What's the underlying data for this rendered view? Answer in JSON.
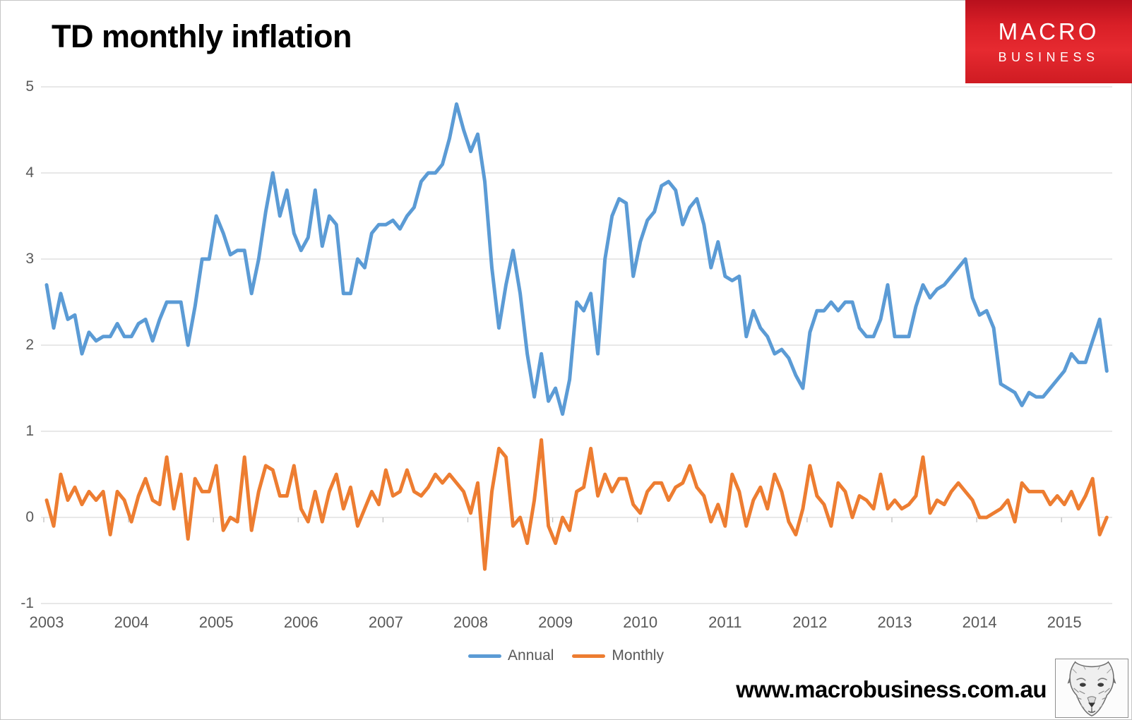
{
  "page": {
    "title": "TD monthly inflation",
    "website": "www.macrobusiness.com.au"
  },
  "logo": {
    "line1": "MACRO",
    "line2": "BUSINESS",
    "background_color": "#d91f27",
    "text_color": "#ffffff"
  },
  "colors": {
    "annual_line": "#5B9BD5",
    "monthly_line": "#ED7D31",
    "gridline": "#D9D9D9",
    "tick": "#BFBFBF",
    "axis_text": "#595959",
    "title_text": "#000000"
  },
  "chart_data": {
    "type": "line",
    "title": "TD monthly inflation",
    "frequency": "monthly",
    "x_start": "2003-01",
    "x_end": "2015-07",
    "x_tick_labels": [
      "2003",
      "2004",
      "2005",
      "2006",
      "2007",
      "2008",
      "2009",
      "2010",
      "2011",
      "2012",
      "2013",
      "2014",
      "2015"
    ],
    "y_ticks": [
      5,
      4,
      3,
      2,
      1,
      0,
      -1
    ],
    "ylim": [
      -1,
      5
    ],
    "grid": true,
    "legend_position": "bottom",
    "series": [
      {
        "name": "Annual",
        "color": "#5B9BD5",
        "values": [
          2.7,
          2.2,
          2.6,
          2.3,
          2.35,
          1.9,
          2.15,
          2.05,
          2.1,
          2.1,
          2.25,
          2.1,
          2.1,
          2.25,
          2.3,
          2.05,
          2.3,
          2.5,
          2.5,
          2.5,
          2.0,
          2.45,
          3.0,
          3.0,
          3.5,
          3.3,
          3.05,
          3.1,
          3.1,
          2.6,
          3.0,
          3.55,
          4.0,
          3.5,
          3.8,
          3.3,
          3.1,
          3.25,
          3.8,
          3.15,
          3.5,
          3.4,
          2.6,
          2.6,
          3.0,
          2.9,
          3.3,
          3.4,
          3.4,
          3.45,
          3.35,
          3.5,
          3.6,
          3.9,
          4.0,
          4.0,
          4.1,
          4.4,
          4.8,
          4.5,
          4.25,
          4.45,
          3.9,
          2.9,
          2.2,
          2.7,
          3.1,
          2.6,
          1.9,
          1.4,
          1.9,
          1.35,
          1.5,
          1.2,
          1.6,
          2.5,
          2.4,
          2.6,
          1.9,
          3.0,
          3.5,
          3.7,
          3.65,
          2.8,
          3.2,
          3.45,
          3.55,
          3.85,
          3.9,
          3.8,
          3.4,
          3.6,
          3.7,
          3.4,
          2.9,
          3.2,
          2.8,
          2.75,
          2.8,
          2.1,
          2.4,
          2.2,
          2.1,
          1.9,
          1.95,
          1.85,
          1.65,
          1.5,
          2.15,
          2.4,
          2.4,
          2.5,
          2.4,
          2.5,
          2.5,
          2.2,
          2.1,
          2.1,
          2.3,
          2.7,
          2.1,
          2.1,
          2.1,
          2.45,
          2.7,
          2.55,
          2.65,
          2.7,
          2.8,
          2.9,
          3.0,
          2.55,
          2.35,
          2.4,
          2.2,
          1.55,
          1.5,
          1.45,
          1.3,
          1.45,
          1.4,
          1.4,
          1.5,
          1.6,
          1.7,
          1.9,
          1.8,
          1.8,
          2.05,
          2.3,
          1.7
        ]
      },
      {
        "name": "Monthly",
        "color": "#ED7D31",
        "values": [
          0.2,
          -0.1,
          0.5,
          0.2,
          0.35,
          0.15,
          0.3,
          0.2,
          0.3,
          -0.2,
          0.3,
          0.2,
          -0.05,
          0.25,
          0.45,
          0.2,
          0.15,
          0.7,
          0.1,
          0.5,
          -0.25,
          0.45,
          0.3,
          0.3,
          0.6,
          -0.15,
          0.0,
          -0.05,
          0.7,
          -0.15,
          0.3,
          0.6,
          0.55,
          0.25,
          0.25,
          0.6,
          0.1,
          -0.05,
          0.3,
          -0.05,
          0.3,
          0.5,
          0.1,
          0.35,
          -0.1,
          0.1,
          0.3,
          0.15,
          0.55,
          0.25,
          0.3,
          0.55,
          0.3,
          0.25,
          0.35,
          0.5,
          0.4,
          0.5,
          0.4,
          0.3,
          0.05,
          0.4,
          -0.6,
          0.3,
          0.8,
          0.7,
          -0.1,
          0.0,
          -0.3,
          0.2,
          0.9,
          -0.1,
          -0.3,
          0.0,
          -0.15,
          0.3,
          0.35,
          0.8,
          0.25,
          0.5,
          0.3,
          0.45,
          0.45,
          0.15,
          0.05,
          0.3,
          0.4,
          0.4,
          0.2,
          0.35,
          0.4,
          0.6,
          0.35,
          0.25,
          -0.05,
          0.15,
          -0.1,
          0.5,
          0.3,
          -0.1,
          0.2,
          0.35,
          0.1,
          0.5,
          0.3,
          -0.05,
          -0.2,
          0.1,
          0.6,
          0.25,
          0.15,
          -0.1,
          0.4,
          0.3,
          0.0,
          0.25,
          0.2,
          0.1,
          0.5,
          0.1,
          0.2,
          0.1,
          0.15,
          0.25,
          0.7,
          0.05,
          0.2,
          0.15,
          0.3,
          0.4,
          0.3,
          0.2,
          0.0,
          0.0,
          0.05,
          0.1,
          0.2,
          -0.05,
          0.4,
          0.3,
          0.3,
          0.3,
          0.15,
          0.25,
          0.15,
          0.3,
          0.1,
          0.25,
          0.45,
          -0.2,
          0.0
        ]
      }
    ]
  }
}
